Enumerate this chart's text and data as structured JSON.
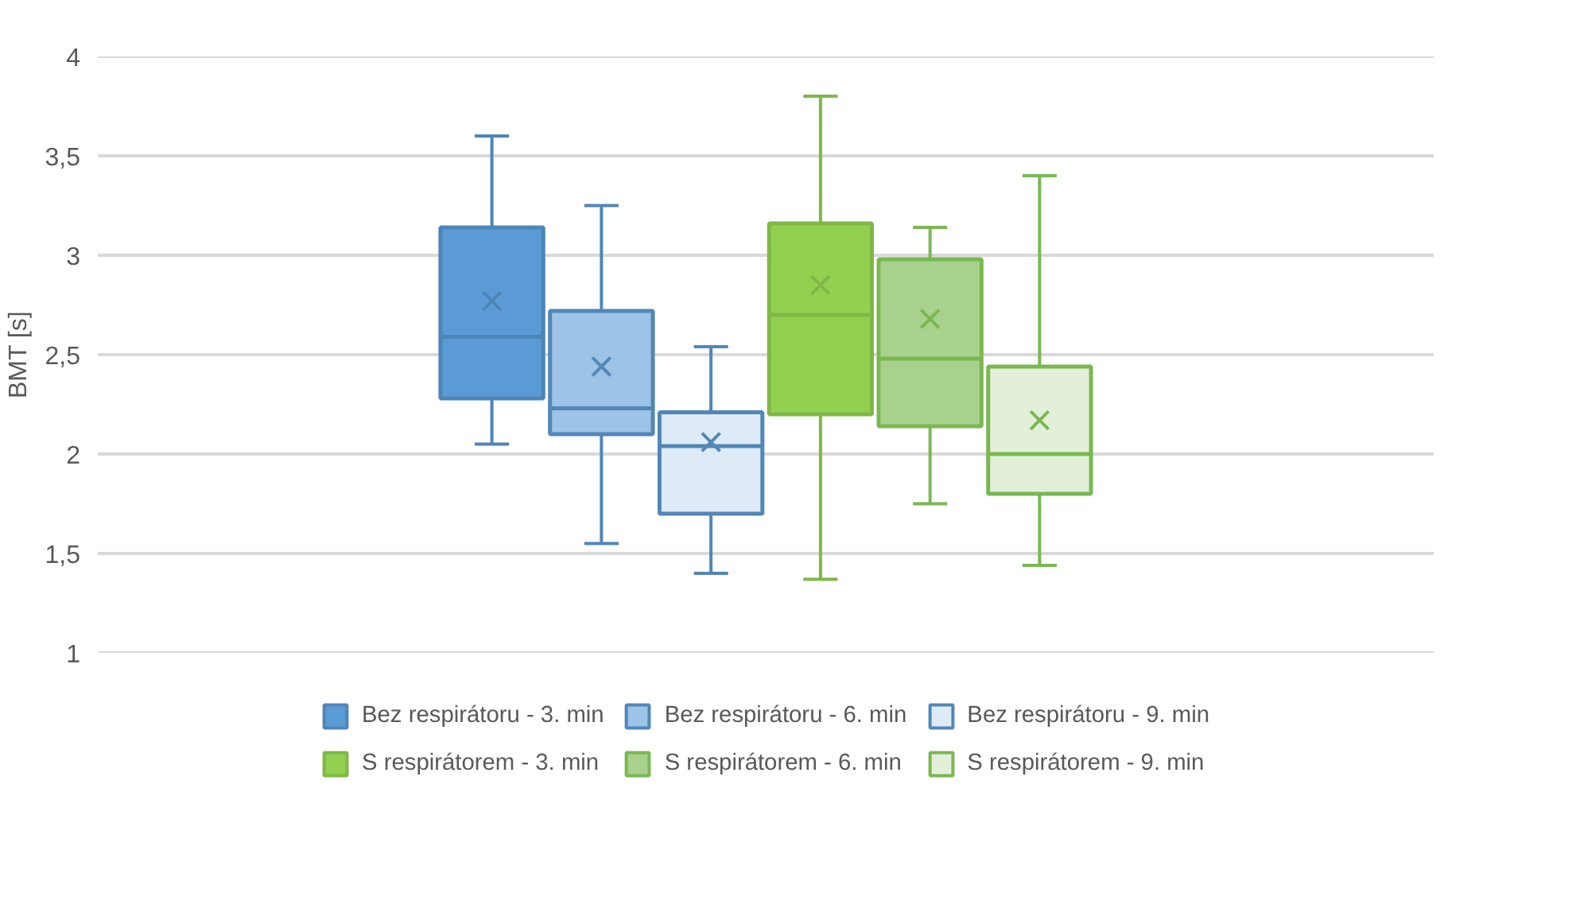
{
  "chart_data": {
    "type": "box",
    "categories": [
      null
    ],
    "ylabel": "BMT [s]",
    "ylim": [
      1,
      4
    ],
    "yticks": [
      1,
      {
        "value": 1.5,
        "label": "1,5"
      },
      2,
      {
        "value": 2.5,
        "label": "2,5"
      },
      3,
      {
        "value": 3.5,
        "label": "3,5"
      },
      4
    ],
    "grid": "y",
    "legend": "bottom",
    "tick_labels": "y",
    "marker": "cross",
    "series": [
      {
        "name": "Bez respirátoru - 3. min",
        "color": "#5b9bd5",
        "boxes": [
          {
            "low": 2.05,
            "q1": 2.28,
            "median": 2.59,
            "q3": 3.14,
            "high": 3.6,
            "mean": 2.77
          }
        ]
      },
      {
        "name": "Bez respirátoru - 6. min",
        "color": "#9dc3e6",
        "boxes": [
          {
            "low": 1.55,
            "q1": 2.1,
            "median": 2.23,
            "q3": 2.72,
            "high": 3.25,
            "mean": 2.44
          }
        ]
      },
      {
        "name": "Bez respirátoru - 9. min",
        "color": "#deebf7",
        "boxes": [
          {
            "low": 1.4,
            "q1": 1.7,
            "median": 2.04,
            "q3": 2.21,
            "high": 2.54,
            "mean": 2.06
          }
        ]
      },
      {
        "name": "S respirátorem - 3. min",
        "color": "#92d050",
        "boxes": [
          {
            "low": 1.37,
            "q1": 2.2,
            "median": 2.7,
            "q3": 3.16,
            "high": 3.8,
            "mean": 2.85
          }
        ]
      },
      {
        "name": "S respirátorem - 6. min",
        "color": "#a9d18e",
        "boxes": [
          {
            "low": 1.75,
            "q1": 2.14,
            "median": 2.48,
            "q3": 2.98,
            "high": 3.14,
            "mean": 2.68
          }
        ]
      },
      {
        "name": "S respirátorem - 9. min",
        "color": "#e2f0d9",
        "boxes": [
          {
            "low": 1.44,
            "q1": 1.8,
            "median": 2.0,
            "q3": 2.44,
            "high": 3.4,
            "mean": 2.17
          }
        ]
      }
    ]
  }
}
